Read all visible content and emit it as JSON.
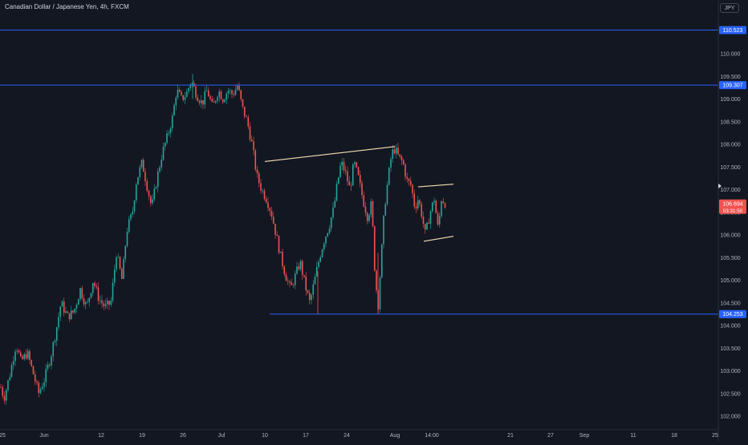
{
  "header": {
    "symbol_title": "Canadian Dollar / Japanese Yen, 4h, FXCM"
  },
  "currency_button": "JPY",
  "colors": {
    "background": "#131722",
    "up": "#26a69a",
    "down": "#ef5350",
    "level_line": "#2962ff",
    "trendline": "#f5deb3",
    "axis_text": "#b2b5be"
  },
  "chart_data": {
    "type": "candlestick",
    "interval": "4h",
    "ylim": [
      101.8,
      111.2
    ],
    "y_ticks": [
      "102.000",
      "102.500",
      "103.000",
      "103.500",
      "104.000",
      "104.500",
      "105.000",
      "105.500",
      "106.000",
      "106.500",
      "107.000",
      "107.500",
      "108.000",
      "108.500",
      "109.000",
      "109.500",
      "110.000"
    ],
    "x_ticks": [
      "25",
      "Jun",
      "12",
      "19",
      "26",
      "Jul",
      "10",
      "17",
      "24",
      "Aug",
      "14:00",
      "21",
      "27",
      "Sep",
      "11",
      "18",
      "25"
    ],
    "price_labels": [
      {
        "value": "110.523",
        "type": "level"
      },
      {
        "value": "109.307",
        "type": "level"
      },
      {
        "value": "106.694",
        "type": "current"
      },
      {
        "value": "104.253",
        "type": "level"
      }
    ],
    "countdown": "03:31:50",
    "horizontal_levels": [
      110.523,
      109.307,
      104.253
    ],
    "path": [
      [
        0,
        102.7
      ],
      [
        5,
        102.4
      ],
      [
        12,
        102.9
      ],
      [
        20,
        103.6
      ],
      [
        26,
        103.2
      ],
      [
        34,
        103.4
      ],
      [
        42,
        102.9
      ],
      [
        48,
        102.5
      ],
      [
        55,
        102.8
      ],
      [
        63,
        103.3
      ],
      [
        70,
        103.9
      ],
      [
        76,
        104.5
      ],
      [
        84,
        104.2
      ],
      [
        92,
        104.3
      ],
      [
        100,
        104.8
      ],
      [
        108,
        104.4
      ],
      [
        116,
        105.0
      ],
      [
        123,
        104.6
      ],
      [
        131,
        104.4
      ],
      [
        138,
        104.5
      ],
      [
        145,
        105.6
      ],
      [
        152,
        105.0
      ],
      [
        158,
        106.1
      ],
      [
        165,
        106.5
      ],
      [
        170,
        107.2
      ],
      [
        177,
        107.6
      ],
      [
        183,
        107.1
      ],
      [
        189,
        106.6
      ],
      [
        195,
        107.2
      ],
      [
        202,
        107.8
      ],
      [
        209,
        108.2
      ],
      [
        215,
        108.6
      ],
      [
        220,
        109.2
      ],
      [
        226,
        109.0
      ],
      [
        232,
        109.1
      ],
      [
        238,
        109.4
      ],
      [
        245,
        109.1
      ],
      [
        252,
        108.9
      ],
      [
        258,
        109.2
      ],
      [
        265,
        108.8
      ],
      [
        272,
        109.2
      ],
      [
        278,
        109.0
      ],
      [
        284,
        109.2
      ],
      [
        290,
        109.1
      ],
      [
        296,
        109.3
      ],
      [
        302,
        108.8
      ],
      [
        308,
        108.5
      ],
      [
        314,
        108.0
      ],
      [
        320,
        107.3
      ],
      [
        326,
        107.0
      ],
      [
        332,
        106.8
      ],
      [
        338,
        106.5
      ],
      [
        344,
        106.0
      ],
      [
        350,
        105.5
      ],
      [
        356,
        105.1
      ],
      [
        362,
        104.8
      ],
      [
        368,
        105.1
      ],
      [
        374,
        105.4
      ],
      [
        380,
        104.9
      ],
      [
        386,
        104.5
      ],
      [
        392,
        105.0
      ],
      [
        398,
        105.5
      ],
      [
        404,
        105.9
      ],
      [
        410,
        106.2
      ],
      [
        416,
        106.6
      ],
      [
        420,
        107.1
      ],
      [
        425,
        107.6
      ],
      [
        430,
        107.4
      ],
      [
        436,
        107.0
      ],
      [
        441,
        107.6
      ],
      [
        446,
        107.3
      ],
      [
        452,
        106.8
      ],
      [
        458,
        106.4
      ],
      [
        463,
        106.7
      ],
      [
        467,
        105.2
      ],
      [
        471,
        104.4
      ],
      [
        475,
        105.5
      ],
      [
        479,
        106.6
      ],
      [
        484,
        107.3
      ],
      [
        488,
        107.8
      ],
      [
        492,
        107.9
      ],
      [
        497,
        107.7
      ],
      [
        502,
        107.6
      ],
      [
        507,
        107.2
      ],
      [
        512,
        107.1
      ],
      [
        517,
        106.6
      ],
      [
        521,
        106.8
      ],
      [
        525,
        106.5
      ],
      [
        530,
        106.0
      ],
      [
        536,
        106.5
      ],
      [
        541,
        106.8
      ],
      [
        546,
        106.1
      ],
      [
        550,
        106.8
      ],
      [
        555,
        106.7
      ]
    ],
    "trendlines": [
      {
        "from": [
          330,
          107.62
        ],
        "to": [
          492,
          107.95
        ]
      },
      {
        "from": [
          521,
          107.06
        ],
        "to": [
          565,
          107.12
        ]
      },
      {
        "from": [
          528,
          105.86
        ],
        "to": [
          565,
          105.97
        ]
      }
    ]
  }
}
